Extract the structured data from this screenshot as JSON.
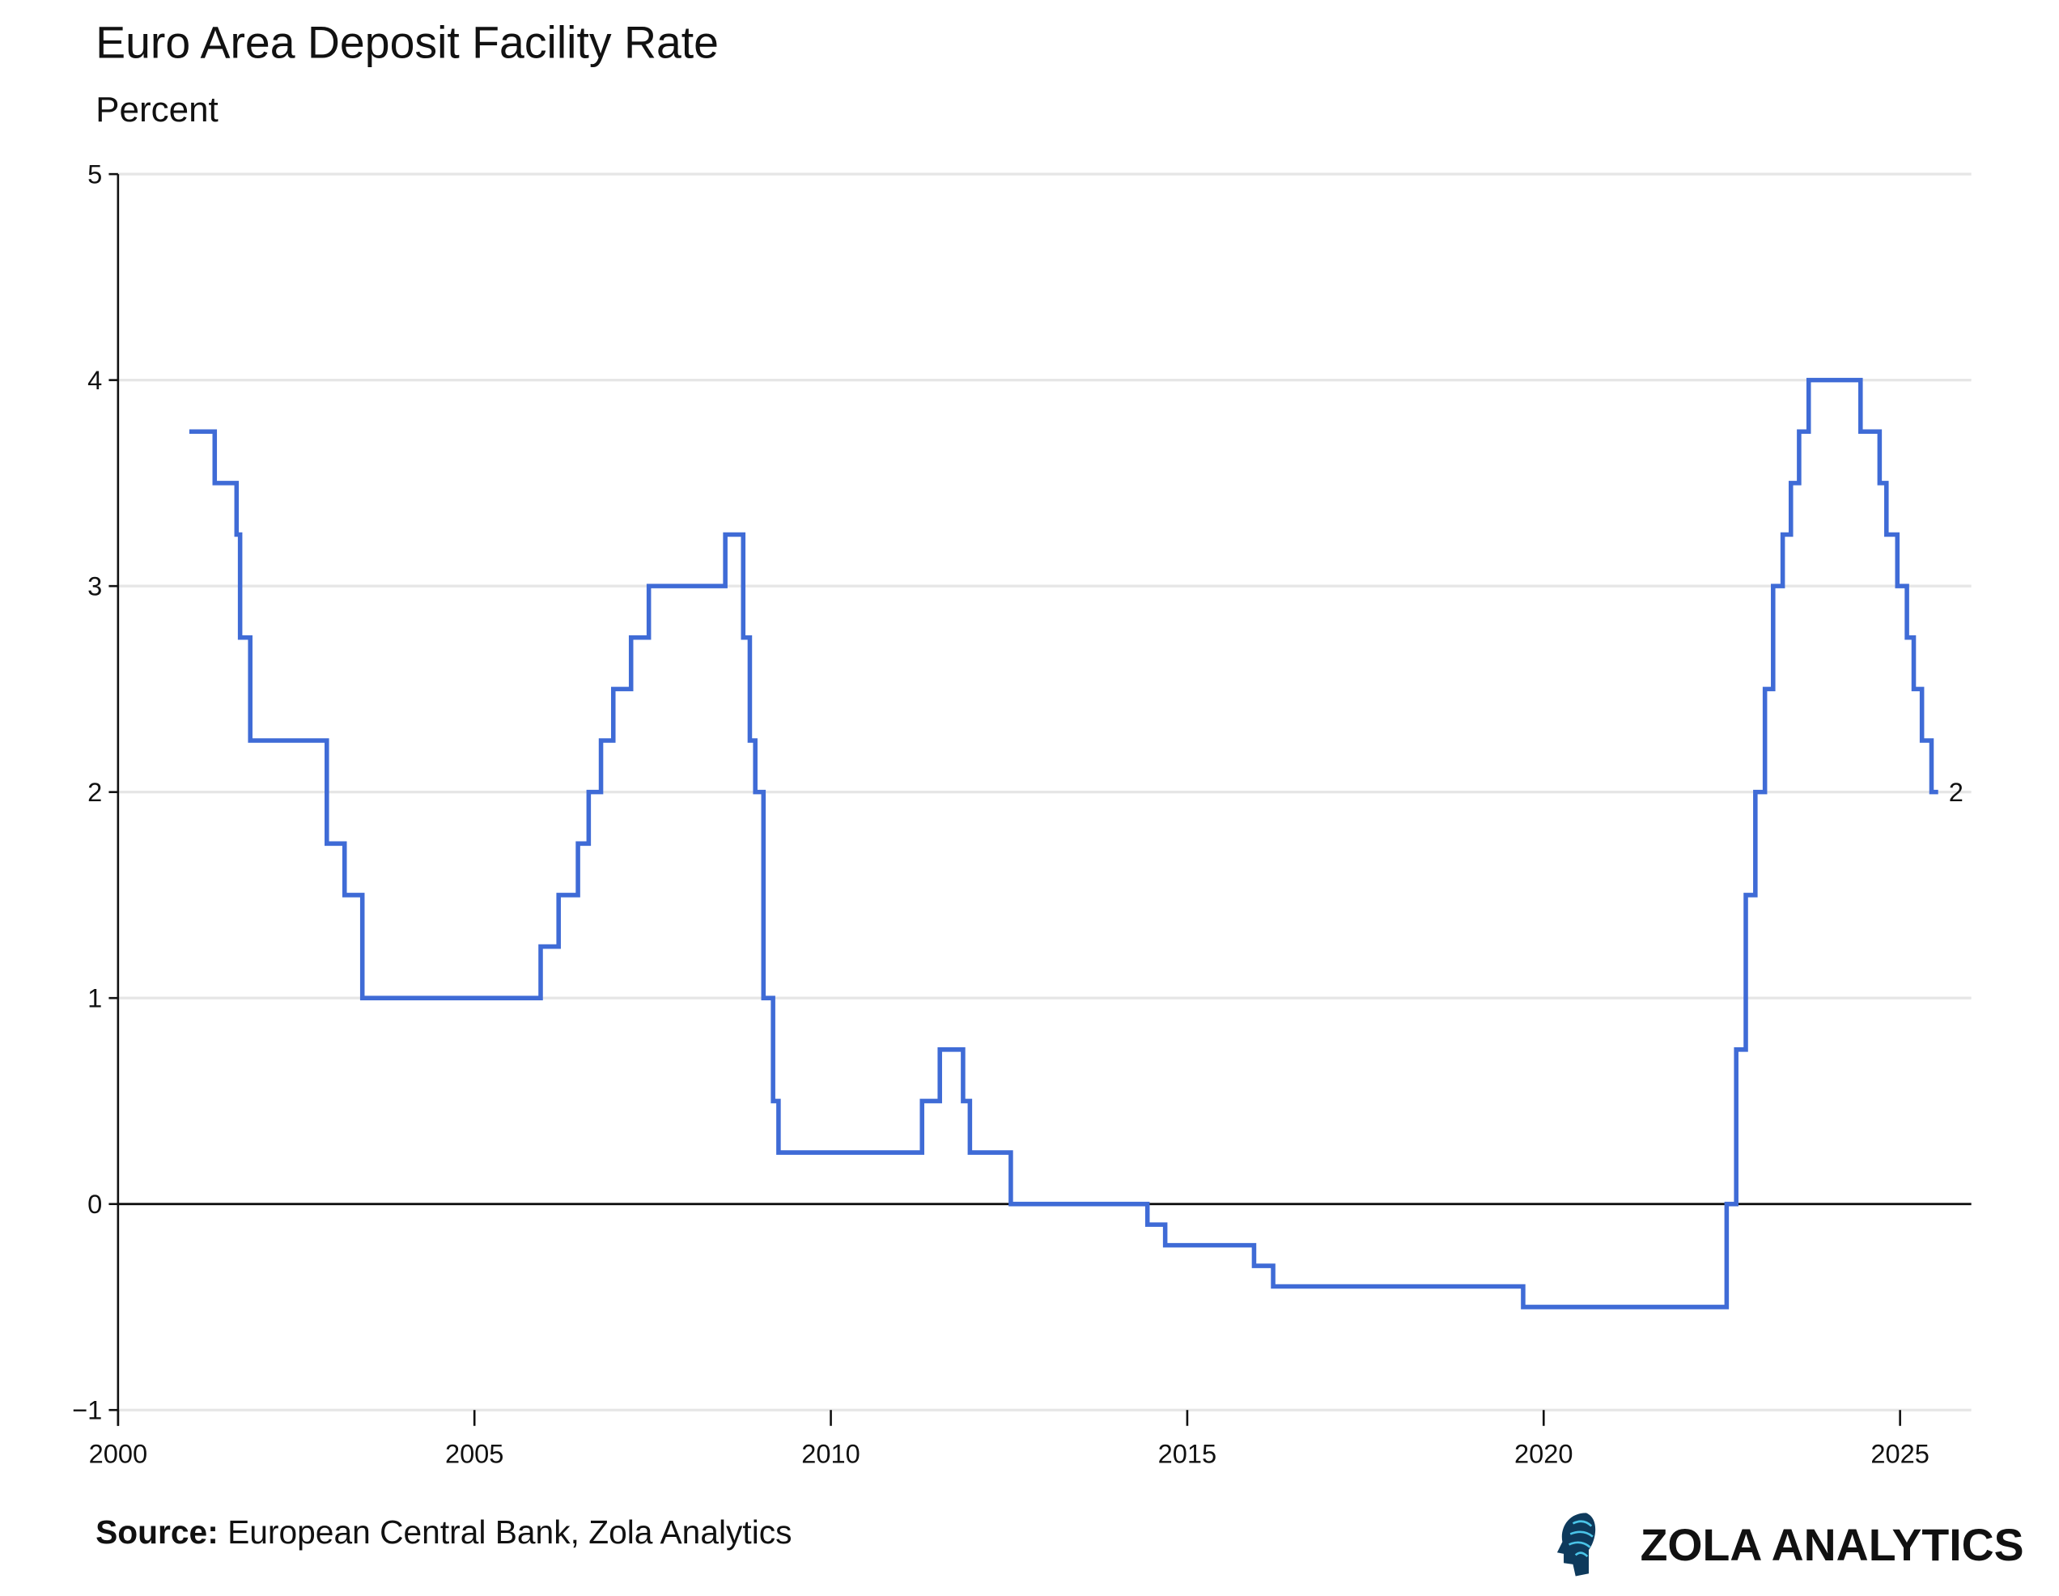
{
  "chart_data": {
    "type": "line",
    "step": true,
    "title": "Euro Area Deposit Facility Rate",
    "subtitle": "Percent",
    "xlabel": "",
    "ylabel": "",
    "xlim": [
      2000,
      2026
    ],
    "ylim": [
      -1,
      5
    ],
    "xticks": [
      "2000",
      "2005",
      "2010",
      "2015",
      "2020",
      "2025"
    ],
    "yticks": [
      "−1",
      "0",
      "1",
      "2",
      "3",
      "4",
      "5"
    ],
    "grid": true,
    "legend": "none",
    "color": "#3f6bd6",
    "end_label": "2",
    "series": [
      {
        "points": [
          [
            "2001-01-01",
            3.75
          ],
          [
            "2001-05-11",
            3.5
          ],
          [
            "2001-08-31",
            3.25
          ],
          [
            "2001-09-18",
            2.75
          ],
          [
            "2001-11-09",
            2.25
          ],
          [
            "2002-12-06",
            1.75
          ],
          [
            "2003-03-07",
            1.5
          ],
          [
            "2003-06-06",
            1.0
          ],
          [
            "2005-12-06",
            1.25
          ],
          [
            "2006-03-08",
            1.5
          ],
          [
            "2006-06-15",
            1.75
          ],
          [
            "2006-08-09",
            2.0
          ],
          [
            "2006-10-11",
            2.25
          ],
          [
            "2006-12-13",
            2.5
          ],
          [
            "2007-03-14",
            2.75
          ],
          [
            "2007-06-13",
            3.0
          ],
          [
            "2008-07-09",
            3.25
          ],
          [
            "2008-10-09",
            2.75
          ],
          [
            "2008-11-12",
            2.25
          ],
          [
            "2008-12-10",
            2.0
          ],
          [
            "2009-01-21",
            1.0
          ],
          [
            "2009-03-11",
            0.5
          ],
          [
            "2009-04-08",
            0.25
          ],
          [
            "2011-04-13",
            0.5
          ],
          [
            "2011-07-13",
            0.75
          ],
          [
            "2011-11-09",
            0.5
          ],
          [
            "2011-12-14",
            0.25
          ],
          [
            "2012-07-11",
            0.0
          ],
          [
            "2014-06-11",
            -0.1
          ],
          [
            "2014-09-10",
            -0.2
          ],
          [
            "2015-12-09",
            -0.3
          ],
          [
            "2016-03-16",
            -0.4
          ],
          [
            "2019-09-18",
            -0.5
          ],
          [
            "2022-07-27",
            0.0
          ],
          [
            "2022-09-14",
            0.75
          ],
          [
            "2022-11-02",
            1.5
          ],
          [
            "2022-12-21",
            2.0
          ],
          [
            "2023-02-08",
            2.5
          ],
          [
            "2023-03-22",
            3.0
          ],
          [
            "2023-05-10",
            3.25
          ],
          [
            "2023-06-21",
            3.5
          ],
          [
            "2023-08-02",
            3.75
          ],
          [
            "2023-09-20",
            4.0
          ],
          [
            "2024-06-12",
            3.75
          ],
          [
            "2024-09-18",
            3.5
          ],
          [
            "2024-10-23",
            3.25
          ],
          [
            "2024-12-18",
            3.0
          ],
          [
            "2025-02-05",
            2.75
          ],
          [
            "2025-03-12",
            2.5
          ],
          [
            "2025-04-23",
            2.25
          ],
          [
            "2025-06-11",
            2.0
          ],
          [
            "2025-07-15",
            2.0
          ]
        ]
      }
    ]
  },
  "footer": {
    "source_label": "Source:",
    "source_text": " European Central Bank, Zola Analytics",
    "brand": "ZOLA ANALYTICS",
    "logo_icon": "head-circuit-icon"
  }
}
